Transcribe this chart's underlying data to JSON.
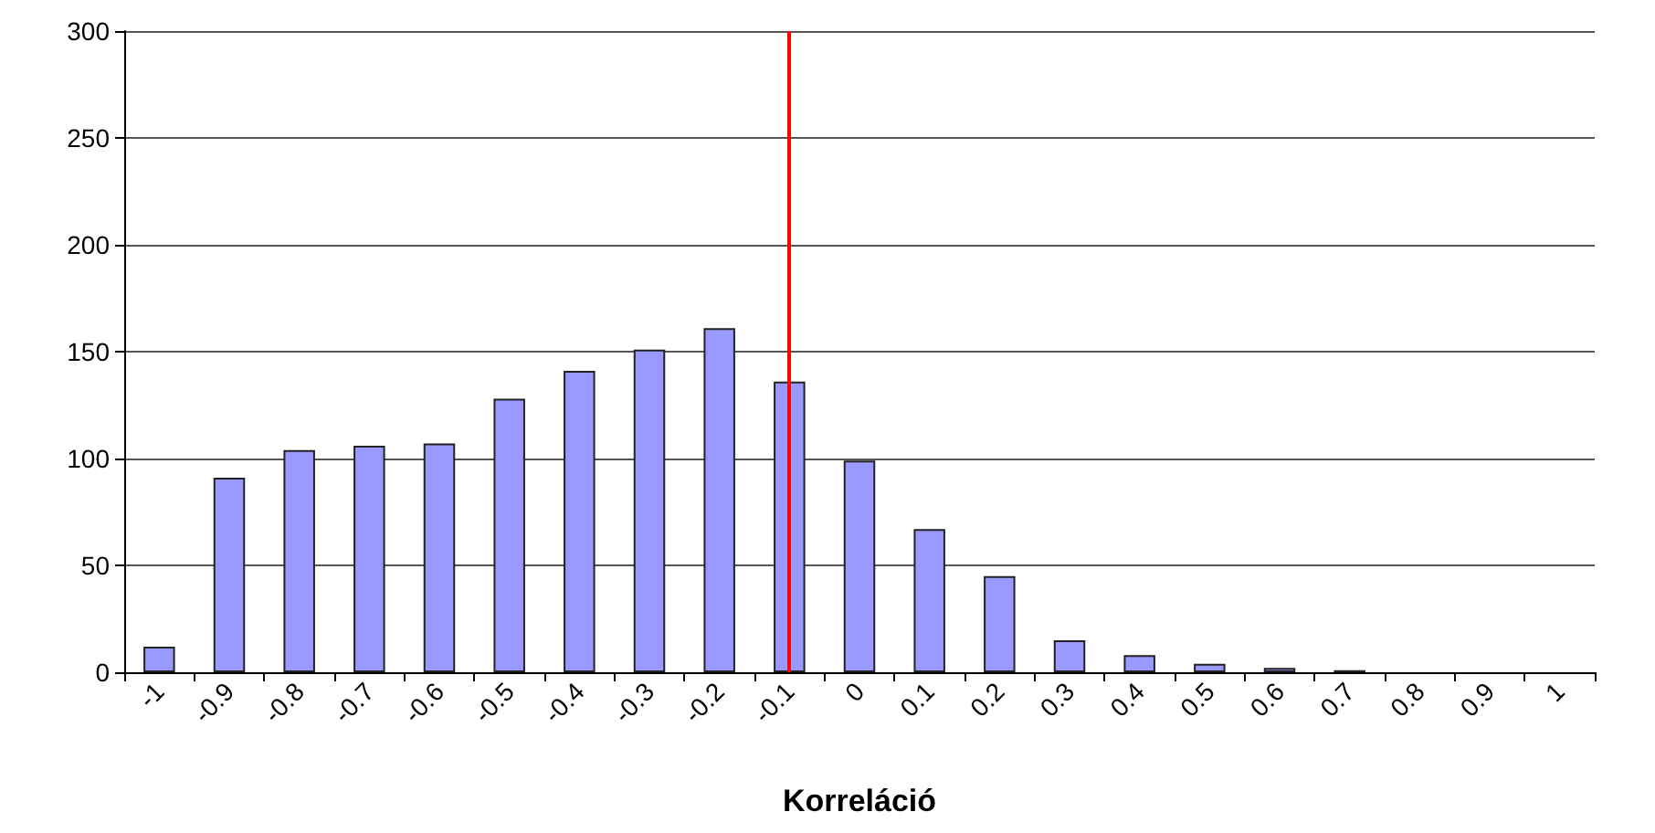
{
  "chart_data": {
    "type": "bar",
    "xlabel": "Korreláció",
    "categories": [
      "-1",
      "-0.9",
      "-0.8",
      "-0.7",
      "-0.6",
      "-0.5",
      "-0.4",
      "-0.3",
      "-0.2",
      "-0.1",
      "0",
      "0.1",
      "0.2",
      "0.3",
      "0.4",
      "0.5",
      "0.6",
      "0.7",
      "0.8",
      "0.9",
      "1"
    ],
    "values": [
      12,
      91,
      104,
      106,
      107,
      128,
      141,
      151,
      161,
      136,
      99,
      67,
      45,
      15,
      8,
      4,
      2,
      1,
      0,
      0,
      0
    ],
    "color": "#9999ff",
    "ylim": [
      0,
      300
    ],
    "yticks": [
      0,
      50,
      100,
      150,
      200,
      250,
      300
    ],
    "grid": "y",
    "ref_lines": [
      {
        "axis": "x",
        "value": "-0.1",
        "color": "#ff0000"
      }
    ]
  }
}
